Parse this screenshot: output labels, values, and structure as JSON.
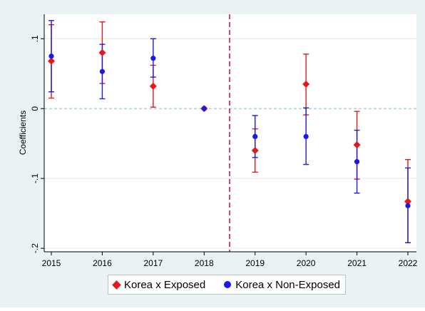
{
  "chart_data": {
    "type": "scatter",
    "ylabel": "Coefficients",
    "xlabel": "",
    "categories": [
      "2015",
      "2016",
      "2017",
      "2018",
      "2019",
      "2020",
      "2021",
      "2022"
    ],
    "ylim": [
      -0.205,
      0.135
    ],
    "yticks": [
      {
        "value": 0.1,
        "label": ".1"
      },
      {
        "value": 0,
        "label": "0"
      },
      {
        "value": -0.1,
        "label": "-.1"
      },
      {
        "value": -0.2,
        "label": "-.2"
      }
    ],
    "reference_line_y": 0,
    "event_line_x": 2018.5,
    "grid": true,
    "legend_position": "bottom",
    "series": [
      {
        "name": "Korea x Exposed",
        "marker": "diamond",
        "color": "#e8171c",
        "points": [
          {
            "x": 2015,
            "y": 0.068,
            "lo": 0.015,
            "hi": 0.12
          },
          {
            "x": 2016,
            "y": 0.08,
            "lo": 0.036,
            "hi": 0.124
          },
          {
            "x": 2017,
            "y": 0.032,
            "lo": 0.002,
            "hi": 0.062
          },
          {
            "x": 2018,
            "y": 0.0,
            "lo": 0.0,
            "hi": 0.0
          },
          {
            "x": 2019,
            "y": -0.06,
            "lo": -0.091,
            "hi": -0.029
          },
          {
            "x": 2020,
            "y": 0.035,
            "lo": -0.009,
            "hi": 0.078
          },
          {
            "x": 2021,
            "y": -0.052,
            "lo": -0.101,
            "hi": -0.004
          },
          {
            "x": 2022,
            "y": -0.133,
            "lo": -0.192,
            "hi": -0.073
          }
        ]
      },
      {
        "name": "Korea x Non-Exposed",
        "marker": "circle",
        "color": "#1a1ae6",
        "points": [
          {
            "x": 2015,
            "y": 0.075,
            "lo": 0.024,
            "hi": 0.126
          },
          {
            "x": 2016,
            "y": 0.053,
            "lo": 0.014,
            "hi": 0.092
          },
          {
            "x": 2017,
            "y": 0.072,
            "lo": 0.045,
            "hi": 0.1
          },
          {
            "x": 2018,
            "y": 0.0,
            "lo": 0.0,
            "hi": 0.0
          },
          {
            "x": 2019,
            "y": -0.04,
            "lo": -0.07,
            "hi": -0.01
          },
          {
            "x": 2020,
            "y": -0.04,
            "lo": -0.08,
            "hi": 0.001
          },
          {
            "x": 2021,
            "y": -0.076,
            "lo": -0.121,
            "hi": -0.031
          },
          {
            "x": 2022,
            "y": -0.139,
            "lo": -0.192,
            "hi": -0.085
          }
        ]
      }
    ]
  },
  "colors": {
    "figure_background": "#eaf2f3",
    "plot_background": "#ffffff",
    "reference_line": "#9ec9d8",
    "event_line": "#c8184a",
    "gridline": "#e6e6e6"
  }
}
